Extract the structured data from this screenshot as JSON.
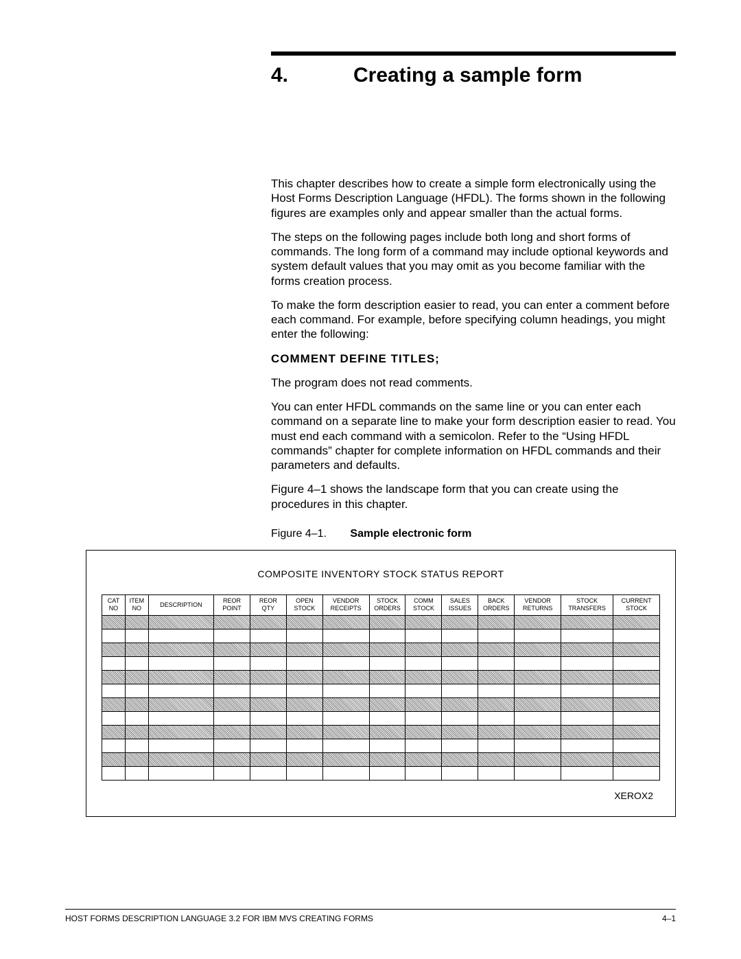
{
  "chapter": {
    "number": "4.",
    "title": "Creating a sample form"
  },
  "paragraphs": {
    "p1": "This chapter describes how to create a simple form electronically using the Host Forms Description Language (HFDL).  The forms shown in the following figures are examples only and appear smaller than the actual forms.",
    "p2": "The steps on the following pages include both long and short forms of commands.  The long form of a command may include optional keywords and system default values that you may omit as you become familiar with the forms creation process.",
    "p3": "To make the form description easier to read, you can enter a comment before each command.  For example, before specifying column headings, you might enter the following:",
    "comment_line": "COMMENT DEFINE TITLES;",
    "p4": "The program does not read comments.",
    "p5": "You can enter HFDL commands on the same line or you can enter each command on a separate line to make your form description easier to read.  You must end each command with a semicolon.  Refer to the “Using HFDL commands” chapter for complete information on HFDL commands and their parameters and defaults.",
    "p6": "Figure 4–1 shows the landscape form that you can create using the procedures in this chapter."
  },
  "figure": {
    "label": "Figure 4–1.",
    "title": "Sample electronic form"
  },
  "form": {
    "title": "COMPOSITE INVENTORY STOCK STATUS REPORT",
    "columns": [
      {
        "line1": "CAT",
        "line2": "NO"
      },
      {
        "line1": "ITEM",
        "line2": "NO"
      },
      {
        "line1": "",
        "line2": "DESCRIPTION"
      },
      {
        "line1": "REOR",
        "line2": "POINT"
      },
      {
        "line1": "REOR",
        "line2": "QTY"
      },
      {
        "line1": "OPEN",
        "line2": "STOCK"
      },
      {
        "line1": "VENDOR",
        "line2": "RECEIPTS"
      },
      {
        "line1": "STOCK",
        "line2": "ORDERS"
      },
      {
        "line1": "COMM",
        "line2": "STOCK"
      },
      {
        "line1": "SALES",
        "line2": "ISSUES"
      },
      {
        "line1": "BACK",
        "line2": "ORDERS"
      },
      {
        "line1": "VENDOR",
        "line2": "RETURNS"
      },
      {
        "line1": "STOCK",
        "line2": "TRANSFERS"
      },
      {
        "line1": "CURRENT",
        "line2": "STOCK"
      }
    ],
    "num_data_rows": 12,
    "footer_label": "XEROX2",
    "col_classes": [
      "c-narrow",
      "c-narrow",
      "c-desc",
      "c-std",
      "c-std",
      "c-std",
      "c-wide",
      "c-std",
      "c-std",
      "c-std",
      "c-std",
      "c-wide",
      "c-wider",
      "c-wide"
    ],
    "shaded_color": "#808080",
    "border_color": "#000000"
  },
  "footer": {
    "left": "HOST FORMS DESCRIPTION LANGUAGE 3.2 FOR IBM MVS CREATING FORMS",
    "right": "4–1"
  }
}
